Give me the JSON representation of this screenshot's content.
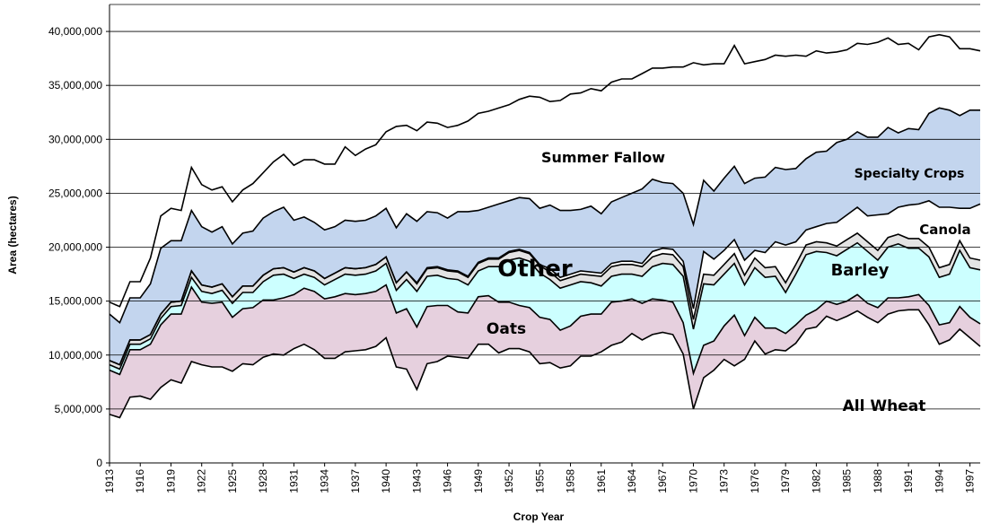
{
  "chart_data": {
    "type": "stacked-area",
    "x_label": "Crop Year",
    "y_label": "Area (hectares)",
    "x": [
      1913,
      1914,
      1915,
      1916,
      1917,
      1918,
      1919,
      1920,
      1921,
      1922,
      1923,
      1924,
      1925,
      1926,
      1927,
      1928,
      1929,
      1930,
      1931,
      1932,
      1933,
      1934,
      1935,
      1936,
      1937,
      1938,
      1939,
      1940,
      1941,
      1942,
      1943,
      1944,
      1945,
      1946,
      1947,
      1948,
      1949,
      1950,
      1951,
      1952,
      1953,
      1954,
      1955,
      1956,
      1957,
      1958,
      1959,
      1960,
      1961,
      1962,
      1963,
      1964,
      1965,
      1966,
      1967,
      1968,
      1969,
      1970,
      1971,
      1972,
      1973,
      1974,
      1975,
      1976,
      1977,
      1978,
      1979,
      1980,
      1981,
      1982,
      1983,
      1984,
      1985,
      1986,
      1987,
      1988,
      1989,
      1990,
      1991,
      1992,
      1993,
      1994,
      1995,
      1996,
      1997,
      1998
    ],
    "xlim": [
      1913,
      1998
    ],
    "xticks": [
      1913,
      1916,
      1919,
      1922,
      1925,
      1928,
      1931,
      1934,
      1937,
      1940,
      1943,
      1946,
      1949,
      1952,
      1955,
      1958,
      1961,
      1964,
      1967,
      1970,
      1973,
      1976,
      1979,
      1982,
      1985,
      1988,
      1991,
      1994,
      1997
    ],
    "ylim": [
      0,
      42500000
    ],
    "yticks": [
      0,
      {
        "value": 5000000,
        "label": "5,000,000"
      },
      {
        "value": 10000000,
        "label": "10,000,000"
      },
      {
        "value": 15000000,
        "label": "15,000,000"
      },
      {
        "value": 20000000,
        "label": "20,000,000"
      },
      {
        "value": 25000000,
        "label": "25,000,000"
      },
      {
        "value": 30000000,
        "label": "30,000,000"
      },
      {
        "value": 35000000,
        "label": "35,000,000"
      },
      {
        "value": 40000000,
        "label": "40,000,000"
      }
    ],
    "grid": true,
    "series": [
      {
        "name": "All Wheat",
        "color": "#ffffff",
        "values": [
          4500000,
          4200000,
          6100000,
          6200000,
          5900000,
          7000000,
          7700000,
          7400000,
          9400000,
          9100000,
          8900000,
          8900000,
          8500000,
          9200000,
          9100000,
          9800000,
          10100000,
          10000000,
          10600000,
          11000000,
          10500000,
          9700000,
          9700000,
          10300000,
          10400000,
          10500000,
          10800000,
          11600000,
          8900000,
          8700000,
          6800000,
          9200000,
          9400000,
          9900000,
          9800000,
          9700000,
          11000000,
          11000000,
          10200000,
          10600000,
          10600000,
          10300000,
          9200000,
          9300000,
          8800000,
          9000000,
          9900000,
          9900000,
          10300000,
          10900000,
          11200000,
          12000000,
          11400000,
          11900000,
          12100000,
          11900000,
          10100000,
          5000000,
          7900000,
          8600000,
          9600000,
          9000000,
          9600000,
          11300000,
          10100000,
          10500000,
          10400000,
          11100000,
          12400000,
          12600000,
          13600000,
          13200000,
          13600000,
          14100000,
          13500000,
          13000000,
          13800000,
          14100000,
          14200000,
          14200000,
          12800000,
          11000000,
          11400000,
          12400000,
          11600000,
          10800000
        ]
      },
      {
        "name": "Oats",
        "color": "#e6d0de",
        "values": [
          4100000,
          4000000,
          4400000,
          4300000,
          5100000,
          5800000,
          6100000,
          6400000,
          6900000,
          5800000,
          5900000,
          6000000,
          5000000,
          5100000,
          5300000,
          5300000,
          5000000,
          5300000,
          5000000,
          5200000,
          5400000,
          5500000,
          5700000,
          5400000,
          5200000,
          5200000,
          5100000,
          4900000,
          5000000,
          5600000,
          5800000,
          5300000,
          5200000,
          4700000,
          4200000,
          4200000,
          4400000,
          4500000,
          4700000,
          4300000,
          4000000,
          4100000,
          4300000,
          4000000,
          3500000,
          3700000,
          3700000,
          3900000,
          3500000,
          4000000,
          3800000,
          3200000,
          3400000,
          3300000,
          3000000,
          3000000,
          2900000,
          3300000,
          3000000,
          2700000,
          3100000,
          4700000,
          2200000,
          2200000,
          2400000,
          2000000,
          1600000,
          1700000,
          1300000,
          1600000,
          1400000,
          1500000,
          1400000,
          1500000,
          1300000,
          1400000,
          1500000,
          1200000,
          1200000,
          1400000,
          1800000,
          1800000,
          1600000,
          2100000,
          1900000,
          2100000
        ]
      },
      {
        "name": "Barley",
        "color": "#ccffff",
        "values": [
          500000,
          500000,
          500000,
          500000,
          500000,
          600000,
          700000,
          800000,
          900000,
          1000000,
          900000,
          1100000,
          1300000,
          1500000,
          1400000,
          1700000,
          2300000,
          2200000,
          1500000,
          1300000,
          1300000,
          1300000,
          1600000,
          1800000,
          1800000,
          1800000,
          1900000,
          2000000,
          2100000,
          2700000,
          3300000,
          2800000,
          2800000,
          2500000,
          3000000,
          2600000,
          2400000,
          2700000,
          3300000,
          3900000,
          4400000,
          4300000,
          4100000,
          3700000,
          3900000,
          3800000,
          3200000,
          2900000,
          2600000,
          2400000,
          2500000,
          2300000,
          2500000,
          3000000,
          3400000,
          3500000,
          4300000,
          4100000,
          5700000,
          5200000,
          4800000,
          4800000,
          4700000,
          4600000,
          4700000,
          4800000,
          3800000,
          4700000,
          5600000,
          5400000,
          4500000,
          4500000,
          4800000,
          4800000,
          4800000,
          4400000,
          4700000,
          5000000,
          4500000,
          4300000,
          4500000,
          4400000,
          4500000,
          5200000,
          4600000,
          5000000
        ]
      },
      {
        "name": "Other",
        "color": "#e3e3e3",
        "values": [
          400000,
          400000,
          400000,
          400000,
          400000,
          400000,
          400000,
          400000,
          600000,
          600000,
          600000,
          600000,
          600000,
          600000,
          600000,
          600000,
          600000,
          600000,
          600000,
          600000,
          600000,
          600000,
          600000,
          600000,
          600000,
          600000,
          600000,
          600000,
          700000,
          700000,
          700000,
          700000,
          700000,
          700000,
          700000,
          700000,
          700000,
          700000,
          700000,
          700000,
          700000,
          700000,
          700000,
          700000,
          700000,
          700000,
          700000,
          700000,
          900000,
          900000,
          900000,
          900000,
          900000,
          900000,
          900000,
          900000,
          900000,
          900000,
          900000,
          900000,
          900000,
          900000,
          900000,
          900000,
          900000,
          900000,
          900000,
          900000,
          900000,
          900000,
          900000,
          900000,
          900000,
          900000,
          900000,
          900000,
          900000,
          900000,
          900000,
          900000,
          900000,
          900000,
          900000,
          900000,
          900000,
          900000
        ]
      },
      {
        "name": "Canola",
        "color": "#ffffff",
        "values": [
          0,
          0,
          0,
          0,
          0,
          0,
          0,
          0,
          0,
          0,
          0,
          0,
          0,
          0,
          0,
          0,
          0,
          0,
          0,
          0,
          0,
          0,
          0,
          0,
          0,
          0,
          0,
          0,
          0,
          0,
          100000,
          100000,
          100000,
          100000,
          100000,
          100000,
          100000,
          100000,
          100000,
          100000,
          100000,
          100000,
          100000,
          300000,
          300000,
          300000,
          300000,
          300000,
          300000,
          300000,
          300000,
          300000,
          300000,
          500000,
          500000,
          500000,
          500000,
          1000000,
          2100000,
          1500000,
          1300000,
          1300000,
          1400000,
          700000,
          1400000,
          2300000,
          3500000,
          2100000,
          1400000,
          1400000,
          1800000,
          2200000,
          2300000,
          2400000,
          2400000,
          3300000,
          2200000,
          2500000,
          3100000,
          3200000,
          4300000,
          5600000,
          5300000,
          3000000,
          4600000,
          5200000
        ]
      },
      {
        "name": "Specialty Crops",
        "color": "#c3d5ee",
        "values": [
          4300000,
          3900000,
          3900000,
          3900000,
          4700000,
          6100000,
          5700000,
          5600000,
          5600000,
          5400000,
          5100000,
          5300000,
          4900000,
          4900000,
          5100000,
          5300000,
          5300000,
          5600000,
          4800000,
          4700000,
          4500000,
          4500000,
          4300000,
          4400000,
          4400000,
          4400000,
          4500000,
          4500000,
          5100000,
          5400000,
          5700000,
          5200000,
          5000000,
          4800000,
          5500000,
          6000000,
          4800000,
          4700000,
          5000000,
          4700000,
          4800000,
          5000000,
          5200000,
          5900000,
          6200000,
          5900000,
          5700000,
          6100000,
          5500000,
          5700000,
          5900000,
          6300000,
          6900000,
          6700000,
          6100000,
          6100000,
          6300000,
          7800000,
          6600000,
          6300000,
          6700000,
          6800000,
          7100000,
          6700000,
          7000000,
          6900000,
          7000000,
          6800000,
          6600000,
          6900000,
          6700000,
          7400000,
          7000000,
          7000000,
          7300000,
          7200000,
          8000000,
          6900000,
          7100000,
          6900000,
          8100000,
          9200000,
          9000000,
          8600000,
          9100000,
          8700000
        ]
      },
      {
        "name": "Summer Fallow",
        "color": "#ffffff",
        "values": [
          1100000,
          1500000,
          1500000,
          1500000,
          2400000,
          3000000,
          3000000,
          2800000,
          4000000,
          3900000,
          3900000,
          3700000,
          3900000,
          4000000,
          4400000,
          4200000,
          4600000,
          4900000,
          5100000,
          5300000,
          5800000,
          6100000,
          5800000,
          6800000,
          6100000,
          6600000,
          6600000,
          7100000,
          9400000,
          8200000,
          8400000,
          8300000,
          8300000,
          8400000,
          8000000,
          8400000,
          9000000,
          8900000,
          8900000,
          8900000,
          9100000,
          9500000,
          10300000,
          9600000,
          10200000,
          10800000,
          10800000,
          10900000,
          11400000,
          11100000,
          11000000,
          10600000,
          10700000,
          10300000,
          10600000,
          10800000,
          11700000,
          15000000,
          10700000,
          11800000,
          10600000,
          11200000,
          11100000,
          10800000,
          10900000,
          10400000,
          10500000,
          10500000,
          9500000,
          9400000,
          9100000,
          8400000,
          8300000,
          8200000,
          8600000,
          8800000,
          8300000,
          8200000,
          7900000,
          7400000,
          7100000,
          6800000,
          6800000,
          6200000,
          5700000,
          5500000
        ]
      }
    ]
  }
}
